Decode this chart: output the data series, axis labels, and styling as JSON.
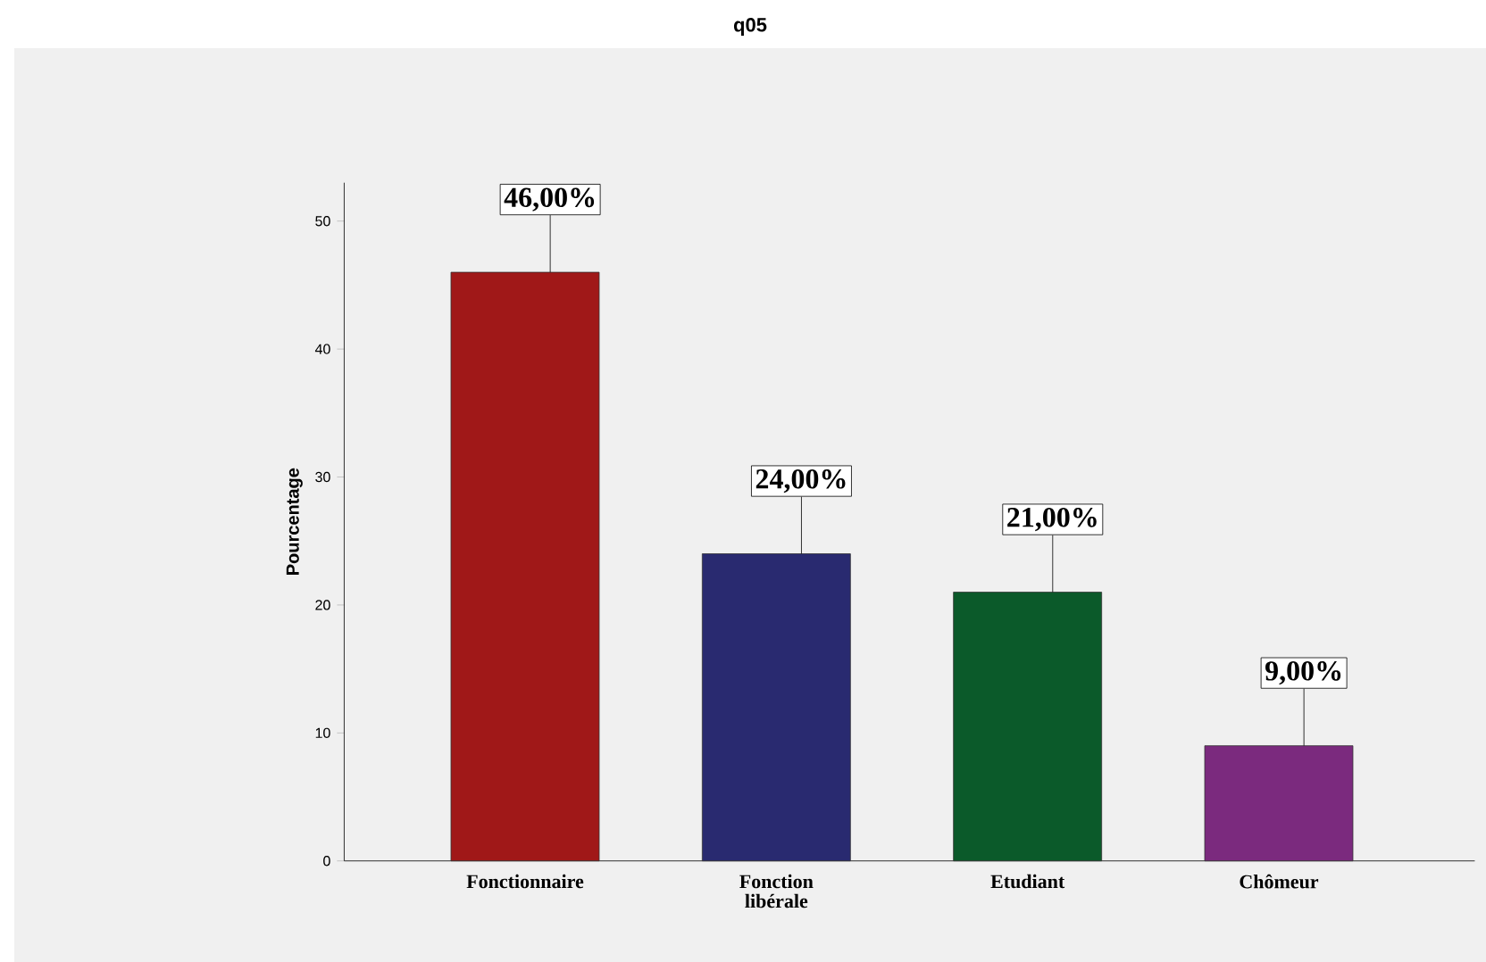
{
  "chart_data": {
    "type": "bar",
    "title": "q05",
    "ylabel": "Pourcentage",
    "categories": [
      "Fonctionnaire",
      "Fonction libérale",
      "Etudiant",
      "Chômeur"
    ],
    "values": [
      46,
      24,
      21,
      9
    ],
    "colors": [
      "#a01818",
      "#292a70",
      "#0b5a2a",
      "#7b2a7e"
    ],
    "value_labels": [
      "46,00%",
      "24,00%",
      "21,00%",
      "9,00%"
    ],
    "ylim": [
      0,
      53
    ],
    "yticks": [
      0,
      10,
      20,
      30,
      40,
      50
    ]
  }
}
